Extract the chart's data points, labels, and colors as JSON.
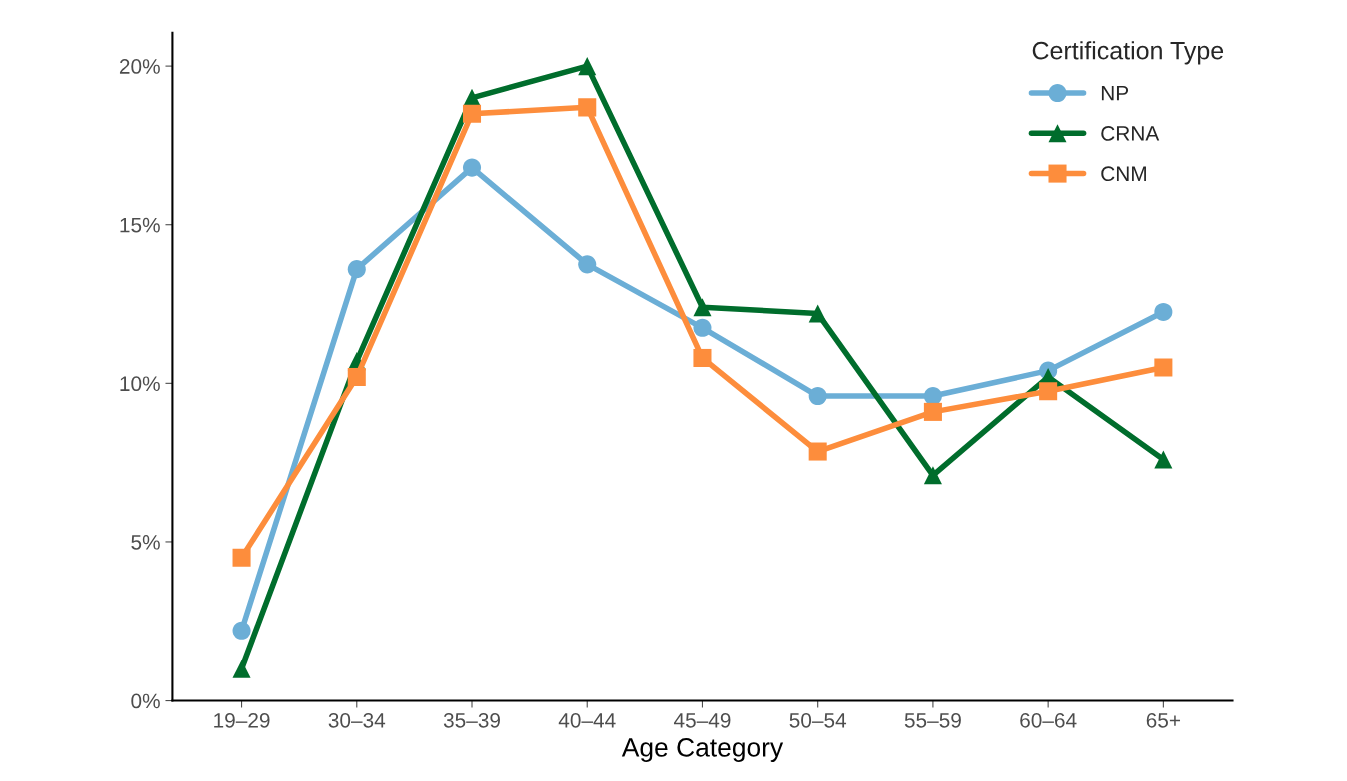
{
  "chart_data": {
    "type": "line",
    "xlabel": "Age Category",
    "legend_title": "Certification Type",
    "legend": "top right",
    "grid": false,
    "categories": [
      "19–29",
      "30–34",
      "35–39",
      "40–44",
      "45–49",
      "50–54",
      "55–59",
      "60–64",
      "65+"
    ],
    "ylim": [
      0,
      21.05
    ],
    "yticks": [
      {
        "value": 0,
        "label": "0%"
      },
      {
        "value": 5,
        "label": "5%"
      },
      {
        "value": 10,
        "label": "10%"
      },
      {
        "value": 15,
        "label": "15%"
      },
      {
        "value": 20,
        "label": "20%"
      }
    ],
    "series": [
      {
        "name": "NP",
        "color": "#6baed6",
        "marker": "circle",
        "values": [
          2.2,
          13.6,
          16.8,
          13.75,
          11.75,
          9.6,
          9.6,
          10.4,
          12.25
        ]
      },
      {
        "name": "CRNA",
        "color": "#006d2c",
        "marker": "triangle",
        "values": [
          1.0,
          10.7,
          19.0,
          20.0,
          12.4,
          12.2,
          7.1,
          10.2,
          7.6
        ]
      },
      {
        "name": "CNM",
        "color": "#fd8d3c",
        "marker": "square",
        "values": [
          4.5,
          10.2,
          18.5,
          18.7,
          10.8,
          7.85,
          9.1,
          9.75,
          10.5
        ]
      }
    ]
  }
}
